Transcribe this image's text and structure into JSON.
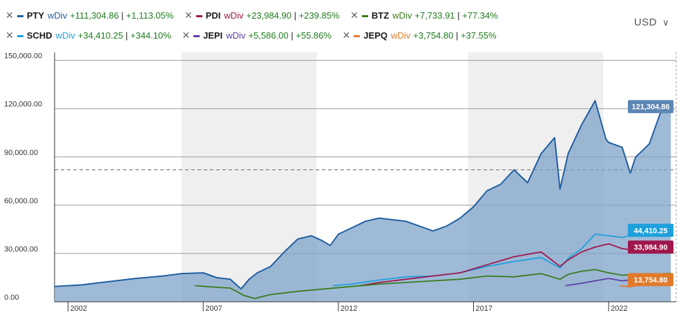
{
  "currency": {
    "label": "USD",
    "chevron": "chevron-down-icon"
  },
  "legend": [
    {
      "ticker": "PTY",
      "div": "wDiv",
      "change": "+111,304.86",
      "pct": "+1,113.05%",
      "color": "#1f5fa0",
      "divColor": "#1f5fa0"
    },
    {
      "ticker": "PDI",
      "div": "wDiv",
      "change": "+23,984.90",
      "pct": "+239.85%",
      "color": "#a0174d",
      "divColor": "#a0174d"
    },
    {
      "ticker": "BTZ",
      "div": "wDiv",
      "change": "+7,733.91",
      "pct": "+77.34%",
      "color": "#3a7a1c",
      "divColor": "#3a7a1c"
    },
    {
      "ticker": "SCHD",
      "div": "wDiv",
      "change": "+34,410.25",
      "pct": "+344.10%",
      "color": "#1ea0dc",
      "divColor": "#1ea0dc"
    },
    {
      "ticker": "JEPI",
      "div": "wDiv",
      "change": "+5,586.00",
      "pct": "+55.86%",
      "color": "#5b3ea6",
      "divColor": "#5b3ea6"
    },
    {
      "ticker": "JEPQ",
      "div": "wDiv",
      "change": "+3,754.80",
      "pct": "+37.55%",
      "color": "#e07b2c",
      "divColor": "#e07b2c"
    }
  ],
  "chart_data": {
    "type": "area",
    "xlim": [
      2001.5,
      2024.5
    ],
    "ylim": [
      0,
      155000
    ],
    "x_ticks": [
      "2002",
      "2007",
      "2012",
      "2017",
      "2022"
    ],
    "x_tick_values": [
      2002,
      2007,
      2012,
      2017,
      2022
    ],
    "y_ticks": [
      "0.00",
      "30,000.00",
      "60,000.00",
      "90,000.00",
      "120,000.00",
      "150,000.00"
    ],
    "y_tick_values": [
      0,
      30000,
      60000,
      90000,
      120000,
      150000
    ],
    "reference_line": 82000,
    "shaded_bands": [
      [
        2006.2,
        2011.2
      ],
      [
        2016.8,
        2021.8
      ]
    ],
    "grid": true,
    "series": [
      {
        "name": "PTY",
        "color": "#1f5fa0",
        "fill": true,
        "x": [
          2001.5,
          2002.5,
          2003.5,
          2004.5,
          2005.5,
          2006.2,
          2007.0,
          2007.5,
          2008.0,
          2008.4,
          2008.7,
          2009.0,
          2009.5,
          2010.0,
          2010.5,
          2011.0,
          2011.4,
          2011.7,
          2012.0,
          2012.5,
          2013.0,
          2013.5,
          2014.0,
          2014.5,
          2015.0,
          2015.5,
          2016.0,
          2016.5,
          2017.0,
          2017.5,
          2018.0,
          2018.5,
          2019.0,
          2019.5,
          2020.0,
          2020.2,
          2020.5,
          2021.0,
          2021.5,
          2021.9,
          2022.0,
          2022.5,
          2022.8,
          2023.0,
          2023.5,
          2024.0,
          2024.3
        ],
        "y": [
          9500,
          10500,
          12500,
          14500,
          16000,
          17500,
          18000,
          15000,
          14000,
          8000,
          14000,
          18000,
          22000,
          31000,
          39000,
          41000,
          38000,
          35000,
          42000,
          46000,
          50000,
          52000,
          51000,
          50000,
          47000,
          44000,
          47000,
          52000,
          59000,
          69000,
          73000,
          82000,
          74000,
          92000,
          102000,
          70000,
          92000,
          110000,
          125000,
          101000,
          99000,
          96000,
          80000,
          90000,
          98000,
          121304,
          125000
        ]
      },
      {
        "name": "SCHD",
        "color": "#1ea0dc",
        "fill": false,
        "x": [
          2011.8,
          2012.5,
          2013.5,
          2014.5,
          2015.5,
          2016.5,
          2017.5,
          2018.5,
          2019.5,
          2020.2,
          2020.5,
          2021.0,
          2021.5,
          2022.0,
          2022.5,
          2023.0,
          2023.5,
          2024.3
        ],
        "y": [
          10000,
          11000,
          13500,
          15500,
          16000,
          18000,
          22000,
          25000,
          27500,
          21000,
          27000,
          33000,
          42000,
          41000,
          40000,
          42000,
          44410,
          47000
        ]
      },
      {
        "name": "PDI",
        "color": "#a0174d",
        "fill": false,
        "x": [
          2012.8,
          2013.5,
          2014.5,
          2015.5,
          2016.5,
          2017.5,
          2018.5,
          2019.5,
          2020.2,
          2020.5,
          2021.0,
          2021.5,
          2022.0,
          2022.5,
          2023.0,
          2023.5,
          2024.3
        ],
        "y": [
          10000,
          12000,
          14000,
          16000,
          18000,
          23000,
          28000,
          31000,
          22000,
          26000,
          31000,
          34000,
          36000,
          33000,
          32000,
          33985,
          35000
        ]
      },
      {
        "name": "BTZ",
        "color": "#3a7a1c",
        "fill": false,
        "x": [
          2006.7,
          2007.5,
          2008.0,
          2008.5,
          2008.9,
          2009.5,
          2010.5,
          2011.5,
          2012.5,
          2013.5,
          2014.5,
          2015.5,
          2016.5,
          2017.5,
          2018.5,
          2019.5,
          2020.2,
          2020.5,
          2021.0,
          2021.5,
          2022.0,
          2022.5,
          2023.0,
          2023.5,
          2024.3
        ],
        "y": [
          10000,
          9000,
          8500,
          4000,
          2000,
          4500,
          6500,
          8000,
          9500,
          11000,
          12000,
          13000,
          14000,
          16000,
          15500,
          17500,
          14000,
          17000,
          19000,
          20000,
          18000,
          16500,
          17000,
          17000,
          17700
        ]
      },
      {
        "name": "JEPI",
        "color": "#5b3ea6",
        "fill": false,
        "x": [
          2020.4,
          2021.0,
          2021.5,
          2022.0,
          2022.5,
          2023.0,
          2023.5,
          2024.3
        ],
        "y": [
          10000,
          11500,
          13000,
          14500,
          13000,
          14000,
          15000,
          15600
        ]
      },
      {
        "name": "JEPQ",
        "color": "#e07b2c",
        "fill": false,
        "x": [
          2022.4,
          2022.8,
          2023.2,
          2023.6,
          2024.0,
          2024.3
        ],
        "y": [
          10000,
          9300,
          10500,
          12000,
          13200,
          13750
        ]
      }
    ],
    "flags": [
      {
        "label": "121,304.86",
        "value": 121304.86,
        "color": "#5d86b3"
      },
      {
        "label": "44,410.25",
        "value": 44410.25,
        "color": "#1ea0dc"
      },
      {
        "label": "33,984.90",
        "value": 33984.9,
        "color": "#a0174d"
      },
      {
        "label": "13,754.80",
        "value": 13754.8,
        "color": "#e07b2c"
      }
    ]
  }
}
